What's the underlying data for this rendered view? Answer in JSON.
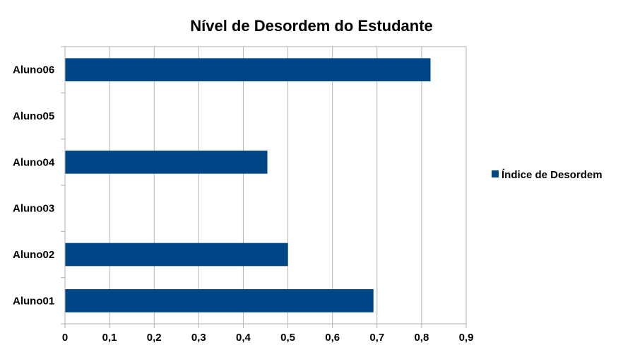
{
  "chart_data": {
    "type": "bar",
    "orientation": "horizontal",
    "title": "Nível de Desordem do Estudante",
    "categories": [
      "Aluno01",
      "Aluno02",
      "Aluno03",
      "Aluno04",
      "Aluno05",
      "Aluno06"
    ],
    "series": [
      {
        "name": "Índice de Desordem",
        "color": "#004586",
        "values": [
          0.692,
          0.5,
          null,
          0.454,
          null,
          0.82
        ]
      }
    ],
    "xlim": [
      0,
      0.9
    ],
    "xticks": [
      "0",
      "0,1",
      "0,2",
      "0,3",
      "0,4",
      "0,5",
      "0,6",
      "0,7",
      "0,8",
      "0,9"
    ],
    "grid": "vertical",
    "legend_position": "right"
  }
}
